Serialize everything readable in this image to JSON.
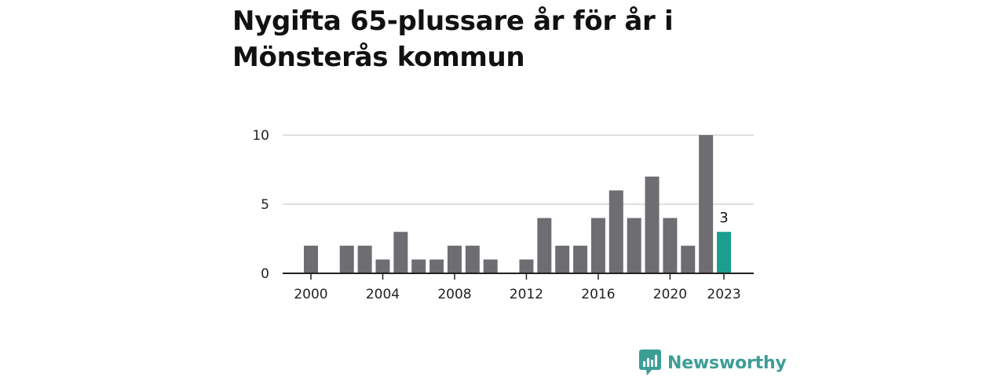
{
  "title": "Nygifta 65-plussare år för år i Mönsterås kommun",
  "brand": {
    "name": "Newsworthy",
    "icon": "newsworthy-logo-icon",
    "color": "#3d9e96"
  },
  "colors": {
    "bar": "#6e6d72",
    "highlight": "#1a9e8f",
    "grid": "#d6d6d6",
    "axis": "#222222"
  },
  "chart_data": {
    "type": "bar",
    "title": "Nygifta 65-plussare år för år i Mönsterås kommun",
    "xlabel": "",
    "ylabel": "",
    "x": [
      2000,
      2001,
      2002,
      2003,
      2004,
      2005,
      2006,
      2007,
      2008,
      2009,
      2010,
      2011,
      2012,
      2013,
      2014,
      2015,
      2016,
      2017,
      2018,
      2019,
      2020,
      2021,
      2022,
      2023
    ],
    "values": [
      2,
      0,
      2,
      2,
      1,
      3,
      1,
      1,
      2,
      2,
      1,
      0,
      1,
      4,
      2,
      2,
      4,
      6,
      4,
      7,
      4,
      2,
      10,
      3
    ],
    "ylim": [
      0,
      10
    ],
    "yticks": [
      0,
      5,
      10
    ],
    "xticks": [
      "2000",
      "2004",
      "2008",
      "2012",
      "2016",
      "2020",
      "2023"
    ],
    "highlight": {
      "x": 2023,
      "label": "3"
    },
    "grid": "horizontal"
  }
}
